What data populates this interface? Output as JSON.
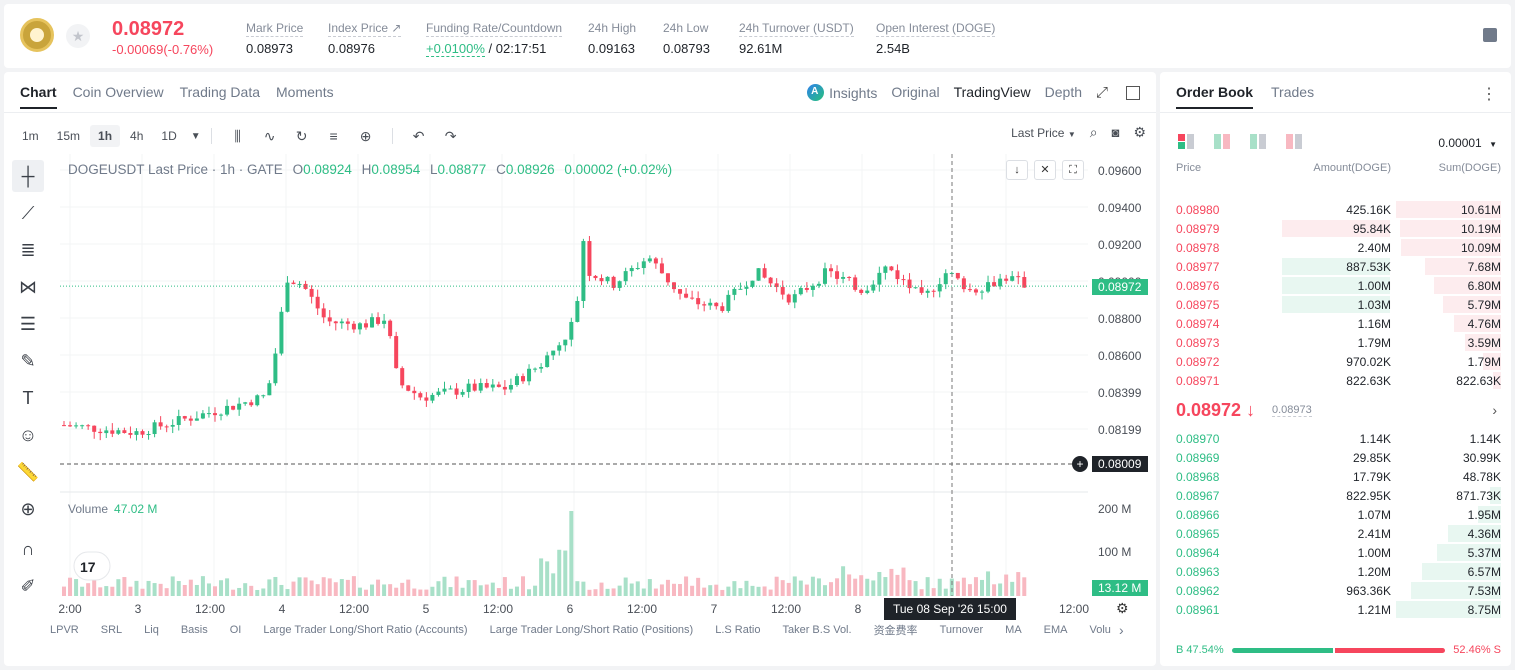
{
  "ticker": {
    "last_price": "0.08972",
    "change": "-0.00069(-0.76%)",
    "stats": [
      {
        "label": "Mark Price",
        "value": "0.08973",
        "left": 0
      },
      {
        "label": "Index Price ↗",
        "value": "0.08976"
      },
      {
        "label": "Funding Rate/Countdown",
        "value_green": "+0.0100%",
        "value": " / 02:17:51"
      },
      {
        "label": "24h High",
        "value": "0.09163"
      },
      {
        "label": "24h Low",
        "value": "0.08793"
      },
      {
        "label": "24h Turnover (USDT)",
        "value": "92.61M"
      },
      {
        "label": "Open Interest (DOGE)",
        "value": "2.54B"
      }
    ]
  },
  "chart_tabs": [
    "Chart",
    "Coin Overview",
    "Trading Data",
    "Moments"
  ],
  "view_tabs": {
    "insights": "Insights",
    "original": "Original",
    "tradingview": "TradingView",
    "depth": "Depth"
  },
  "timeframes": [
    "1m",
    "15m",
    "1h",
    "4h",
    "1D"
  ],
  "toolbar": {
    "last_price_select": "Last Price"
  },
  "legend": {
    "symbol": "DOGEUSDT Last Price · 1h · GATE",
    "o": "0.08924",
    "h": "0.08954",
    "l": "0.08877",
    "c": "0.08926",
    "chg": "0.00002 (+0.02%)"
  },
  "volume": {
    "label": "Volume",
    "value": "47.02 M"
  },
  "price_axis": {
    "labels": [
      "0.09600",
      "0.09400",
      "0.09200",
      "0.09000",
      "0.08800",
      "0.08600",
      "0.08399",
      "0.08199"
    ],
    "current_badge": "0.08972",
    "cursor_badge": "0.08009",
    "vol_labels": [
      "200 M",
      "100 M"
    ],
    "vol_badge": "13.12 M"
  },
  "time_axis": {
    "labels": [
      "2:00",
      "3",
      "12:00",
      "4",
      "12:00",
      "5",
      "12:00",
      "6",
      "12:00",
      "7",
      "12:00",
      "8",
      "12:00"
    ],
    "cursor": "Tue 08 Sep '26   15:00"
  },
  "indicators": [
    "LPVR",
    "SRL",
    "Liq",
    "Basis",
    "OI",
    "Large Trader Long/Short Ratio (Accounts)",
    "Large Trader Long/Short Ratio (Positions)",
    "L.S Ratio",
    "Taker B.S Vol.",
    "资金费率",
    "Turnover",
    "MA",
    "EMA",
    "Volu"
  ],
  "orderbook": {
    "tabs": [
      "Order Book",
      "Trades"
    ],
    "precision": "0.00001",
    "headers": {
      "price": "Price",
      "amount": "Amount(DOGE)",
      "sum": "Sum(DOGE)"
    },
    "asks": [
      {
        "p": "0.08980",
        "a": "425.16K",
        "s": "10.61M",
        "sumf": 1.0,
        "af": 0,
        "ac": "none"
      },
      {
        "p": "0.08979",
        "a": "95.84K",
        "s": "10.19M",
        "sumf": 0.96,
        "af": 0.42,
        "ac": "red"
      },
      {
        "p": "0.08978",
        "a": "2.40M",
        "s": "10.09M",
        "sumf": 0.95,
        "af": 0,
        "ac": "none"
      },
      {
        "p": "0.08977",
        "a": "887.53K",
        "s": "7.68M",
        "sumf": 0.72,
        "af": 0.42,
        "ac": "green"
      },
      {
        "p": "0.08976",
        "a": "1.00M",
        "s": "6.80M",
        "sumf": 0.64,
        "af": 0.42,
        "ac": "green"
      },
      {
        "p": "0.08975",
        "a": "1.03M",
        "s": "5.79M",
        "sumf": 0.55,
        "af": 0.42,
        "ac": "green"
      },
      {
        "p": "0.08974",
        "a": "1.16M",
        "s": "4.76M",
        "sumf": 0.45,
        "af": 0,
        "ac": "none"
      },
      {
        "p": "0.08973",
        "a": "1.79M",
        "s": "3.59M",
        "sumf": 0.34,
        "af": 0,
        "ac": "none"
      },
      {
        "p": "0.08972",
        "a": "970.02K",
        "s": "1.79M",
        "sumf": 0.17,
        "af": 0,
        "ac": "none"
      },
      {
        "p": "0.08971",
        "a": "822.63K",
        "s": "822.63K",
        "sumf": 0.08,
        "af": 0,
        "ac": "none"
      }
    ],
    "mid": {
      "price": "0.08972 ↓",
      "mark": "0.08973"
    },
    "bids": [
      {
        "p": "0.08970",
        "a": "1.14K",
        "s": "1.14K",
        "sumf": 0.0
      },
      {
        "p": "0.08969",
        "a": "29.85K",
        "s": "30.99K",
        "sumf": 0.0
      },
      {
        "p": "0.08968",
        "a": "17.79K",
        "s": "48.78K",
        "sumf": 0.0
      },
      {
        "p": "0.08967",
        "a": "822.95K",
        "s": "871.73K",
        "sumf": 0.1
      },
      {
        "p": "0.08966",
        "a": "1.07M",
        "s": "1.95M",
        "sumf": 0.22
      },
      {
        "p": "0.08965",
        "a": "2.41M",
        "s": "4.36M",
        "sumf": 0.5
      },
      {
        "p": "0.08964",
        "a": "1.00M",
        "s": "5.37M",
        "sumf": 0.61
      },
      {
        "p": "0.08963",
        "a": "1.20M",
        "s": "6.57M",
        "sumf": 0.75
      },
      {
        "p": "0.08962",
        "a": "963.36K",
        "s": "7.53M",
        "sumf": 0.86
      },
      {
        "p": "0.08961",
        "a": "1.21M",
        "s": "8.75M",
        "sumf": 1.0
      }
    ],
    "ratio": {
      "buy": "B 47.54%",
      "sell": "52.46% S",
      "buy_pct": 47.54
    }
  },
  "colors": {
    "up": "#2ebd85",
    "down": "#f6465d",
    "up_light": "#e8f7f1",
    "down_light": "#fdecee"
  }
}
